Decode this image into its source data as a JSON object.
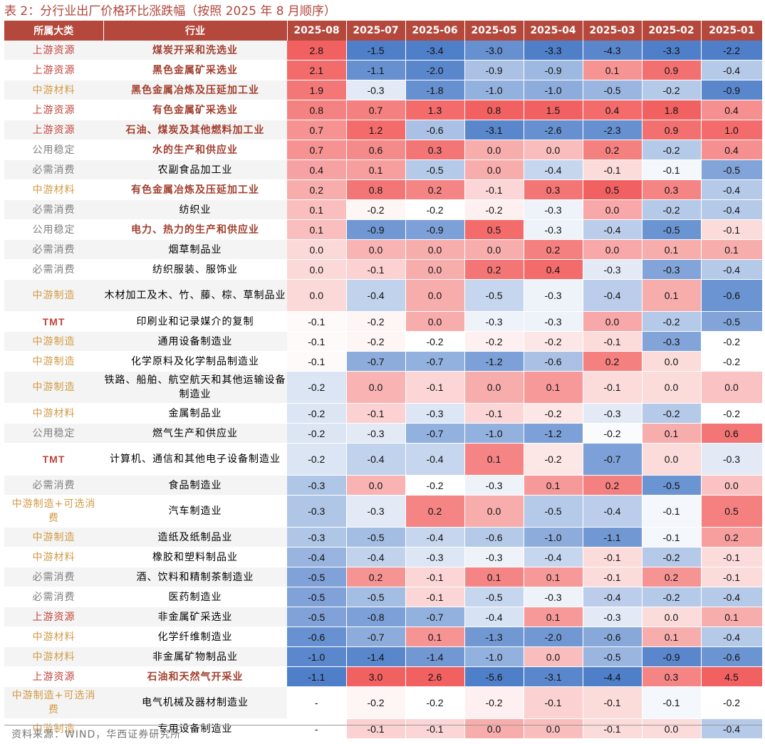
{
  "title": "表 2：分行业出厂价格环比涨跌幅（按照 2025 年 8 月顺序）",
  "columns": {
    "category": "所属大类",
    "industry": "行业",
    "months": [
      "2025-08",
      "2025-07",
      "2025-06",
      "2025-05",
      "2025-04",
      "2025-03",
      "2025-02",
      "2025-01"
    ]
  },
  "colors": {
    "header_bg": "#b5483c",
    "title": "#b0463b",
    "cat_upstream": "#c2433a",
    "cat_midstream": "#d29a45",
    "cat_public": "#7f7f7f",
    "cat_consumer": "#7f7f7f",
    "cat_tmt": "#c2433a",
    "ind_highlight": "#a2402f",
    "ind_normal": "#000000",
    "pos_max": "#f26161",
    "neg_max": "#4f7fc9"
  },
  "rows": [
    {
      "category": "上游资源",
      "cat_color": "cat_upstream",
      "industry": "煤炭开采和洗选业",
      "highlight": true,
      "values": [
        "2.8",
        "-1.5",
        "-3.4",
        "-3.0",
        "-3.3",
        "-4.3",
        "-3.3",
        "-2.2"
      ],
      "tall": false
    },
    {
      "category": "上游资源",
      "cat_color": "cat_upstream",
      "industry": "黑色金属矿采选业",
      "highlight": true,
      "values": [
        "2.1",
        "-1.1",
        "-2.0",
        "-0.9",
        "-0.9",
        "0.1",
        "0.9",
        "-0.4"
      ],
      "tall": false
    },
    {
      "category": "中游材料",
      "cat_color": "cat_midstream",
      "industry": "黑色金属冶炼及压延加工业",
      "highlight": true,
      "values": [
        "1.9",
        "-0.3",
        "-1.8",
        "-1.0",
        "-1.0",
        "-0.5",
        "-0.2",
        "-0.9"
      ],
      "tall": false
    },
    {
      "category": "上游资源",
      "cat_color": "cat_upstream",
      "industry": "有色金属矿采选业",
      "highlight": true,
      "values": [
        "0.8",
        "0.7",
        "1.3",
        "0.8",
        "1.5",
        "0.4",
        "1.8",
        "0.4"
      ],
      "tall": false
    },
    {
      "category": "上游资源",
      "cat_color": "cat_upstream",
      "industry": "石油、煤炭及其他燃料加工业",
      "highlight": true,
      "values": [
        "0.7",
        "1.2",
        "-0.6",
        "-3.1",
        "-2.6",
        "-2.3",
        "0.9",
        "1.0"
      ],
      "tall": false
    },
    {
      "category": "公用稳定",
      "cat_color": "cat_public",
      "industry": "水的生产和供应业",
      "highlight": true,
      "values": [
        "0.7",
        "0.6",
        "0.3",
        "0.0",
        "0.0",
        "0.2",
        "-0.2",
        "0.4"
      ],
      "tall": false
    },
    {
      "category": "必需消费",
      "cat_color": "cat_consumer",
      "industry": "农副食品加工业",
      "highlight": false,
      "values": [
        "0.4",
        "0.1",
        "-0.5",
        "0.0",
        "-0.4",
        "-0.1",
        "-0.1",
        "-0.5"
      ],
      "tall": false
    },
    {
      "category": "中游材料",
      "cat_color": "cat_midstream",
      "industry": "有色金属冶炼及压延加工业",
      "highlight": true,
      "values": [
        "0.2",
        "0.8",
        "0.2",
        "-0.1",
        "0.3",
        "0.5",
        "0.3",
        "-0.4"
      ],
      "tall": false
    },
    {
      "category": "必需消费",
      "cat_color": "cat_consumer",
      "industry": "纺织业",
      "highlight": false,
      "values": [
        "0.1",
        "-0.2",
        "-0.2",
        "-0.2",
        "-0.3",
        "0.0",
        "-0.2",
        "-0.4"
      ],
      "tall": false
    },
    {
      "category": "公用稳定",
      "cat_color": "cat_public",
      "industry": "电力、热力的生产和供应业",
      "highlight": true,
      "values": [
        "0.1",
        "-0.9",
        "-0.9",
        "0.5",
        "-0.3",
        "-0.4",
        "-0.5",
        "-0.1"
      ],
      "tall": false
    },
    {
      "category": "必需消费",
      "cat_color": "cat_consumer",
      "industry": "烟草制品业",
      "highlight": false,
      "values": [
        "0.0",
        "0.0",
        "0.0",
        "0.0",
        "0.2",
        "0.0",
        "0.1",
        "0.1"
      ],
      "tall": false
    },
    {
      "category": "必需消费",
      "cat_color": "cat_consumer",
      "industry": "纺织服装、服饰业",
      "highlight": false,
      "values": [
        "0.0",
        "-0.1",
        "0.0",
        "0.2",
        "0.4",
        "-0.3",
        "-0.3",
        "-0.4"
      ],
      "tall": false
    },
    {
      "category": "中游制造",
      "cat_color": "cat_midstream",
      "industry": "木材加工及木、竹、藤、棕、草制品业",
      "highlight": false,
      "values": [
        "0.0",
        "-0.4",
        "0.0",
        "-0.5",
        "-0.3",
        "-0.4",
        "0.1",
        "-0.6"
      ],
      "tall": true
    },
    {
      "category": "TMT",
      "cat_color": "cat_tmt",
      "industry": "印刷业和记录媒介的复制",
      "highlight": false,
      "values": [
        "-0.1",
        "-0.2",
        "0.0",
        "-0.3",
        "-0.3",
        "0.0",
        "-0.2",
        "-0.5"
      ],
      "tall": false
    },
    {
      "category": "中游制造",
      "cat_color": "cat_midstream",
      "industry": "通用设备制造业",
      "highlight": false,
      "values": [
        "-0.1",
        "-0.2",
        "-0.2",
        "-0.2",
        "-0.2",
        "-0.1",
        "-0.3",
        "-0.2"
      ],
      "tall": false
    },
    {
      "category": "中游制造",
      "cat_color": "cat_midstream",
      "industry": "化学原料及化学制品制造业",
      "highlight": false,
      "values": [
        "-0.1",
        "-0.7",
        "-0.7",
        "-1.2",
        "-0.6",
        "0.2",
        "0.0",
        "-0.2"
      ],
      "tall": false
    },
    {
      "category": "中游制造",
      "cat_color": "cat_midstream",
      "industry": "铁路、船舶、航空航天和其他运输设备制造业",
      "highlight": false,
      "values": [
        "-0.2",
        "0.0",
        "-0.1",
        "0.0",
        "0.1",
        "-0.1",
        "0.0",
        "0.0"
      ],
      "tall": true
    },
    {
      "category": "中游材料",
      "cat_color": "cat_midstream",
      "industry": "金属制品业",
      "highlight": false,
      "values": [
        "-0.2",
        "-0.1",
        "-0.3",
        "-0.1",
        "-0.2",
        "-0.3",
        "-0.2",
        "-0.2"
      ],
      "tall": false
    },
    {
      "category": "公用稳定",
      "cat_color": "cat_public",
      "industry": "燃气生产和供应业",
      "highlight": false,
      "values": [
        "-0.2",
        "-0.3",
        "-0.7",
        "-1.0",
        "-1.2",
        "-0.2",
        "0.1",
        "0.6"
      ],
      "tall": false
    },
    {
      "category": "TMT",
      "cat_color": "cat_tmt",
      "industry": "计算机、通信和其他电子设备制造业",
      "highlight": false,
      "values": [
        "-0.2",
        "-0.4",
        "-0.4",
        "0.1",
        "-0.2",
        "-0.7",
        "0.0",
        "-0.3"
      ],
      "tall": true
    },
    {
      "category": "必需消费",
      "cat_color": "cat_consumer",
      "industry": "食品制造业",
      "highlight": false,
      "values": [
        "-0.3",
        "0.0",
        "-0.2",
        "-0.3",
        "0.1",
        "0.2",
        "-0.5",
        "0.0"
      ],
      "tall": false
    },
    {
      "category": "中游制造+可选消费",
      "cat_color": "cat_midstream",
      "industry": "汽车制造业",
      "highlight": false,
      "values": [
        "-0.3",
        "-0.3",
        "0.2",
        "0.0",
        "-0.5",
        "-0.4",
        "-0.1",
        "0.5"
      ],
      "tall": true
    },
    {
      "category": "中游制造",
      "cat_color": "cat_midstream",
      "industry": "造纸及纸制品业",
      "highlight": false,
      "values": [
        "-0.3",
        "-0.5",
        "-0.4",
        "-0.6",
        "-1.0",
        "-1.1",
        "-0.1",
        "0.2"
      ],
      "tall": false
    },
    {
      "category": "中游材料",
      "cat_color": "cat_midstream",
      "industry": "橡胶和塑料制品业",
      "highlight": false,
      "values": [
        "-0.4",
        "-0.4",
        "-0.3",
        "-0.3",
        "-0.4",
        "-0.1",
        "-0.2",
        "-0.1"
      ],
      "tall": false
    },
    {
      "category": "必需消费",
      "cat_color": "cat_consumer",
      "industry": "酒、饮料和精制茶制造业",
      "highlight": false,
      "values": [
        "-0.5",
        "0.2",
        "-0.1",
        "0.1",
        "0.1",
        "-0.1",
        "0.2",
        "-0.1"
      ],
      "tall": false
    },
    {
      "category": "必需消费",
      "cat_color": "cat_consumer",
      "industry": "医药制造业",
      "highlight": false,
      "values": [
        "-0.5",
        "-0.5",
        "-0.1",
        "-0.5",
        "-0.3",
        "-0.4",
        "-0.2",
        "-0.4"
      ],
      "tall": false
    },
    {
      "category": "上游资源",
      "cat_color": "cat_upstream",
      "industry": "非金属矿采选业",
      "highlight": false,
      "values": [
        "-0.5",
        "-0.8",
        "-0.7",
        "-0.4",
        "0.1",
        "-0.3",
        "0.0",
        "0.1"
      ],
      "tall": false
    },
    {
      "category": "中游材料",
      "cat_color": "cat_midstream",
      "industry": "化学纤维制造业",
      "highlight": false,
      "values": [
        "-0.6",
        "-0.7",
        "0.1",
        "-1.3",
        "-2.0",
        "-0.6",
        "0.1",
        "-0.4"
      ],
      "tall": false
    },
    {
      "category": "中游材料",
      "cat_color": "cat_midstream",
      "industry": "非金属矿物制品业",
      "highlight": false,
      "values": [
        "-1.0",
        "-1.4",
        "-1.4",
        "-1.0",
        "0.0",
        "-0.5",
        "-0.9",
        "-0.6"
      ],
      "tall": false
    },
    {
      "category": "上游资源",
      "cat_color": "cat_upstream",
      "industry": "石油和天然气开采业",
      "highlight": true,
      "values": [
        "-1.1",
        "3.0",
        "2.6",
        "-5.6",
        "-3.1",
        "-4.4",
        "0.3",
        "4.5"
      ],
      "tall": false
    },
    {
      "category": "中游制造+可选消费",
      "cat_color": "cat_midstream",
      "industry": "电气机械及器材制造业",
      "highlight": false,
      "values": [
        "-",
        "-0.2",
        "-0.2",
        "-0.2",
        "-0.1",
        "-0.1",
        "-0.1",
        "-0.2"
      ],
      "tall": true
    },
    {
      "category": "中游制造",
      "cat_color": "cat_midstream",
      "industry": "专用设备制造业",
      "highlight": false,
      "values": [
        "-",
        "-0.1",
        "-0.1",
        "0.0",
        "0.0",
        "-0.1",
        "0.0",
        "-0.4"
      ],
      "tall": false
    }
  ],
  "source": "资料来源：WIND，华西证券研究所"
}
